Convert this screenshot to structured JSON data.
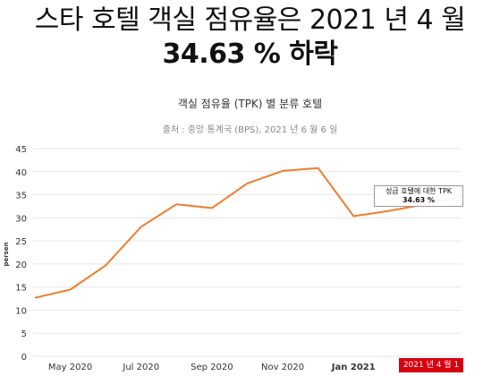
{
  "headline": {
    "line1": "스타 호텔 객실 점유율은 2021 년 4 월",
    "line2": "34.63 % 하락"
  },
  "subtitle": "객실 점유율 (TPK) 별 분류 호텔",
  "source": "출처 : 중앙 통계국 (BPS), 2021 년 6 월 6 일",
  "colors": {
    "line": "#f07c2c",
    "badge": "#d7000f",
    "grid": "#e6e6e6"
  },
  "tooltip": {
    "label": "성급 호텔에 대한 TPK",
    "value": "34.63 %"
  },
  "badge": "2021 년 4 월 1",
  "chart_data": {
    "type": "line",
    "ylabel": "persen",
    "ylim": [
      0,
      45
    ],
    "yticks": [
      0,
      5,
      10,
      15,
      20,
      25,
      30,
      35,
      40,
      45
    ],
    "xticks": [
      "May 2020",
      "Jul 2020",
      "Sep 2020",
      "Nov 2020",
      "Jan 2021"
    ],
    "grid": true,
    "series": [
      {
        "x": [
          "Apr 2020",
          "May 2020",
          "Jun 2020",
          "Jul 2020",
          "Aug 2020",
          "Sep 2020",
          "Oct 2020",
          "Nov 2020",
          "Dec 2020",
          "Jan 2021",
          "Feb 2021",
          "Mar 2021",
          "Apr 2021"
        ],
        "values": [
          12.67,
          14.45,
          19.7,
          28.07,
          32.93,
          32.12,
          37.48,
          40.17,
          40.79,
          30.35,
          31.5,
          32.9,
          34.63
        ]
      }
    ]
  }
}
